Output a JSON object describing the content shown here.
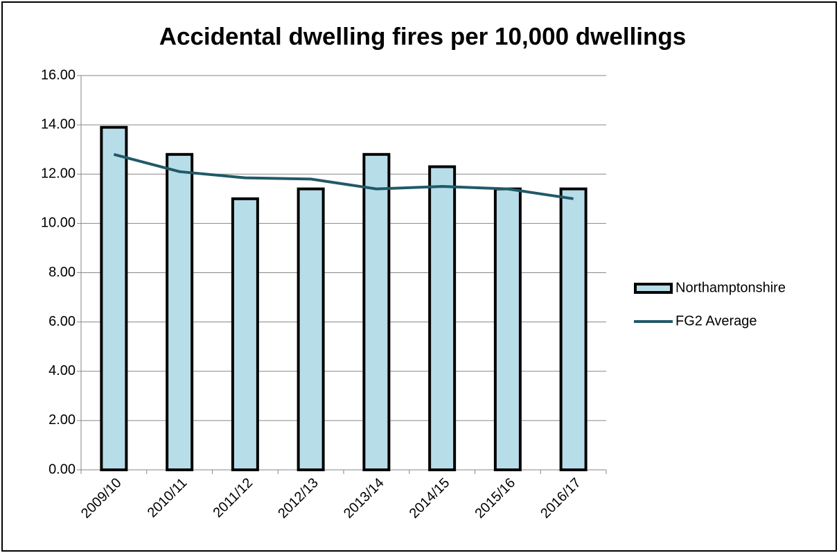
{
  "chart_data": {
    "type": "bar_line",
    "title": "Accidental dwelling fires per 10,000 dwellings",
    "categories": [
      "2009/10",
      "2010/11",
      "2011/12",
      "2012/13",
      "2013/14",
      "2014/15",
      "2015/16",
      "2016/17"
    ],
    "series": [
      {
        "name": "Northamptonshire",
        "type": "bar",
        "color": "#b7dde8",
        "values": [
          13.9,
          12.8,
          11.0,
          11.4,
          12.8,
          12.3,
          11.4,
          11.4
        ]
      },
      {
        "name": "FG2 Average",
        "type": "line",
        "color": "#215968",
        "values": [
          12.8,
          12.1,
          11.85,
          11.8,
          11.4,
          11.5,
          11.4,
          11.0
        ]
      }
    ],
    "ylim": [
      0,
      16
    ],
    "yticks": [
      {
        "value": 0,
        "label": "0.00"
      },
      {
        "value": 2,
        "label": "2.00"
      },
      {
        "value": 4,
        "label": "4.00"
      },
      {
        "value": 6,
        "label": "6.00"
      },
      {
        "value": 8,
        "label": "8.00"
      },
      {
        "value": 10,
        "label": "10.00"
      },
      {
        "value": 12,
        "label": "12.00"
      },
      {
        "value": 14,
        "label": "14.00"
      },
      {
        "value": 16,
        "label": "16.00"
      }
    ],
    "grid": true,
    "legend": "right"
  }
}
